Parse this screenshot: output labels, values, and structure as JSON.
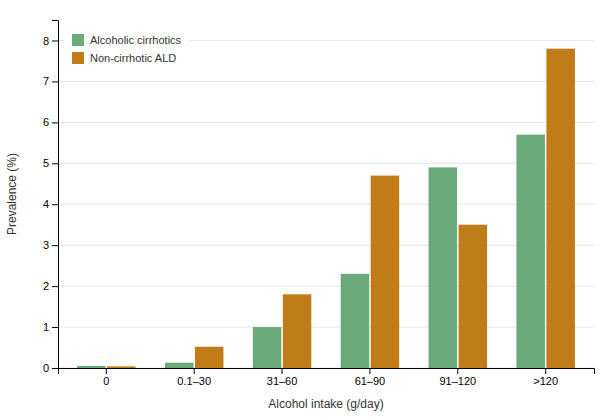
{
  "chart_data": {
    "type": "bar",
    "categories": [
      "0",
      "0.1–30",
      "31–60",
      "61–90",
      "91–120",
      ">120"
    ],
    "series": [
      {
        "name": "Alcoholic cirrhotics",
        "color": "#6aaa7a",
        "values": [
          0.05,
          0.13,
          1.0,
          2.3,
          4.9,
          5.7
        ]
      },
      {
        "name": "Non-cirrhotic ALD",
        "color": "#c07c18",
        "values": [
          0.04,
          0.52,
          1.8,
          4.7,
          3.5,
          7.8
        ]
      }
    ],
    "xlabel": "Alcohol intake (g/day)",
    "ylabel": "Prevalence (%)",
    "ylim": [
      0,
      8.5
    ],
    "yticks": [
      0,
      1,
      2,
      3,
      4,
      5,
      6,
      7,
      8
    ],
    "grid": true,
    "legend": "upper left"
  }
}
